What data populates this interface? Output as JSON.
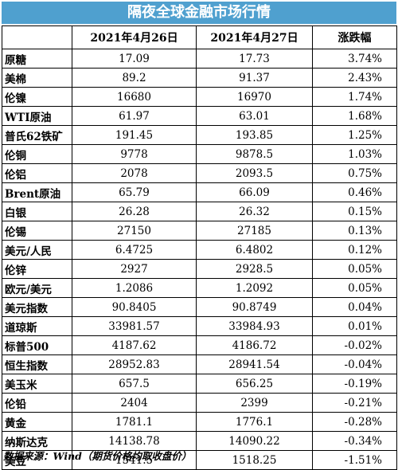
{
  "title": "隔夜全球金融市场行情",
  "headers": [
    "",
    "2021年4月26日",
    "2021年4月27日",
    "涨跌幅"
  ],
  "rows": [
    {
      "name": "原糖",
      "d1": "17.09",
      "d2": "17.73",
      "chg": "3.74%"
    },
    {
      "name": "美棉",
      "d1": "89.2",
      "d2": "91.37",
      "chg": "2.43%"
    },
    {
      "name": "伦镍",
      "d1": "16680",
      "d2": "16970",
      "chg": "1.74%"
    },
    {
      "name": "WTI原油",
      "d1": "61.97",
      "d2": "63.01",
      "chg": "1.68%"
    },
    {
      "name": "普氏62铁矿",
      "d1": "191.45",
      "d2": "193.85",
      "chg": "1.25%"
    },
    {
      "name": "伦铜",
      "d1": "9778",
      "d2": "9878.5",
      "chg": "1.03%"
    },
    {
      "name": "伦铝",
      "d1": "2078",
      "d2": "2093.5",
      "chg": "0.75%"
    },
    {
      "name": "Brent原油",
      "d1": "65.79",
      "d2": "66.09",
      "chg": "0.46%"
    },
    {
      "name": "白银",
      "d1": "26.28",
      "d2": "26.32",
      "chg": "0.15%"
    },
    {
      "name": "伦锡",
      "d1": "27150",
      "d2": "27185",
      "chg": "0.13%"
    },
    {
      "name": "美元/人民",
      "d1": "6.4725",
      "d2": "6.4802",
      "chg": "0.12%"
    },
    {
      "name": "伦锌",
      "d1": "2927",
      "d2": "2928.5",
      "chg": "0.05%"
    },
    {
      "name": "欧元/美元",
      "d1": "1.2086",
      "d2": "1.2092",
      "chg": "0.05%"
    },
    {
      "name": "美元指数",
      "d1": "90.8405",
      "d2": "90.8749",
      "chg": "0.04%"
    },
    {
      "name": "道琼斯",
      "d1": "33981.57",
      "d2": "33984.93",
      "chg": "0.01%"
    },
    {
      "name": "标普500",
      "d1": "4187.62",
      "d2": "4186.72",
      "chg": "-0.02%"
    },
    {
      "name": "恒生指数",
      "d1": "28952.83",
      "d2": "28941.54",
      "chg": "-0.04%"
    },
    {
      "name": "美玉米",
      "d1": "657.5",
      "d2": "656.25",
      "chg": "-0.19%"
    },
    {
      "name": "伦铅",
      "d1": "2404",
      "d2": "2399",
      "chg": "-0.21%"
    },
    {
      "name": "黄金",
      "d1": "1781.1",
      "d2": "1776.1",
      "chg": "-0.28%"
    },
    {
      "name": "纳斯达克",
      "d1": "14138.78",
      "d2": "14090.22",
      "chg": "-0.34%"
    },
    {
      "name": "美豆",
      "d1": "1541.5",
      "d2": "1518.25",
      "chg": "-1.51%"
    }
  ],
  "footer": "数据来源：Wind（期货价格均取收盘价）",
  "colors": {
    "title_bg": "#4fa0cf",
    "title_text": "#ffffff",
    "grid": "#000000"
  }
}
